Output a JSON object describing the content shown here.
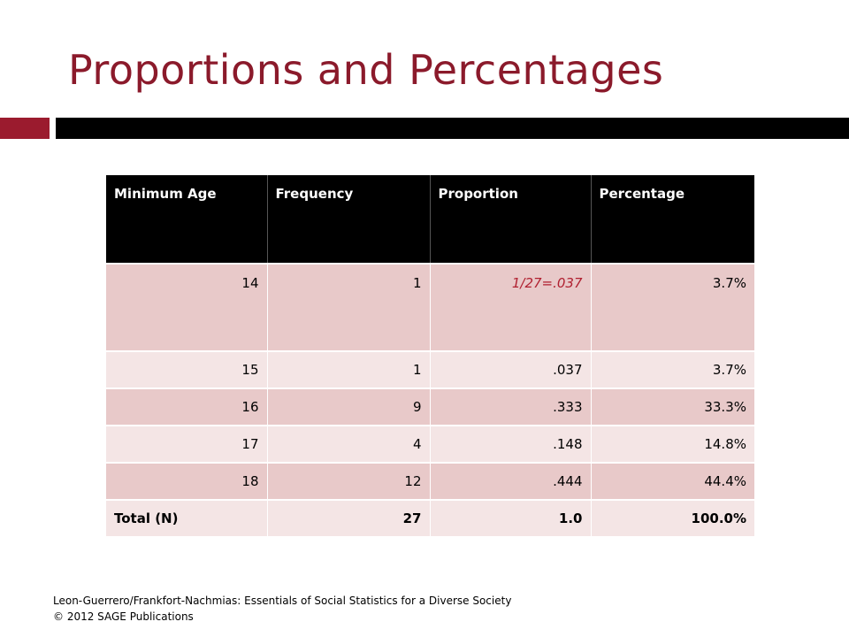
{
  "title": "Proportions and Percentages",
  "colors": {
    "accent": "#9b1b2e",
    "title": "#8b1a2b",
    "header_bg": "#000000",
    "row_dark": "#e8c9c9",
    "row_light": "#f4e5e5",
    "highlight_text": "#b02030"
  },
  "table": {
    "headers": [
      "Minimum Age",
      "Frequency",
      "Proportion",
      "Percentage"
    ],
    "rows": [
      [
        "14",
        "1",
        "1/27=.037",
        "3.7%"
      ],
      [
        "15",
        "1",
        ".037",
        "3.7%"
      ],
      [
        "16",
        "9",
        ".333",
        "33.3%"
      ],
      [
        "17",
        "4",
        ".148",
        "14.8%"
      ],
      [
        "18",
        "12",
        ".444",
        "44.4%"
      ]
    ],
    "total": [
      "Total (N)",
      "27",
      "1.0",
      "100.0%"
    ]
  },
  "footer": {
    "line1": "Leon-Guerrero/Frankfort-Nachmias: Essentials of Social Statistics for a Diverse Society",
    "line2": "© 2012 SAGE Publications"
  }
}
